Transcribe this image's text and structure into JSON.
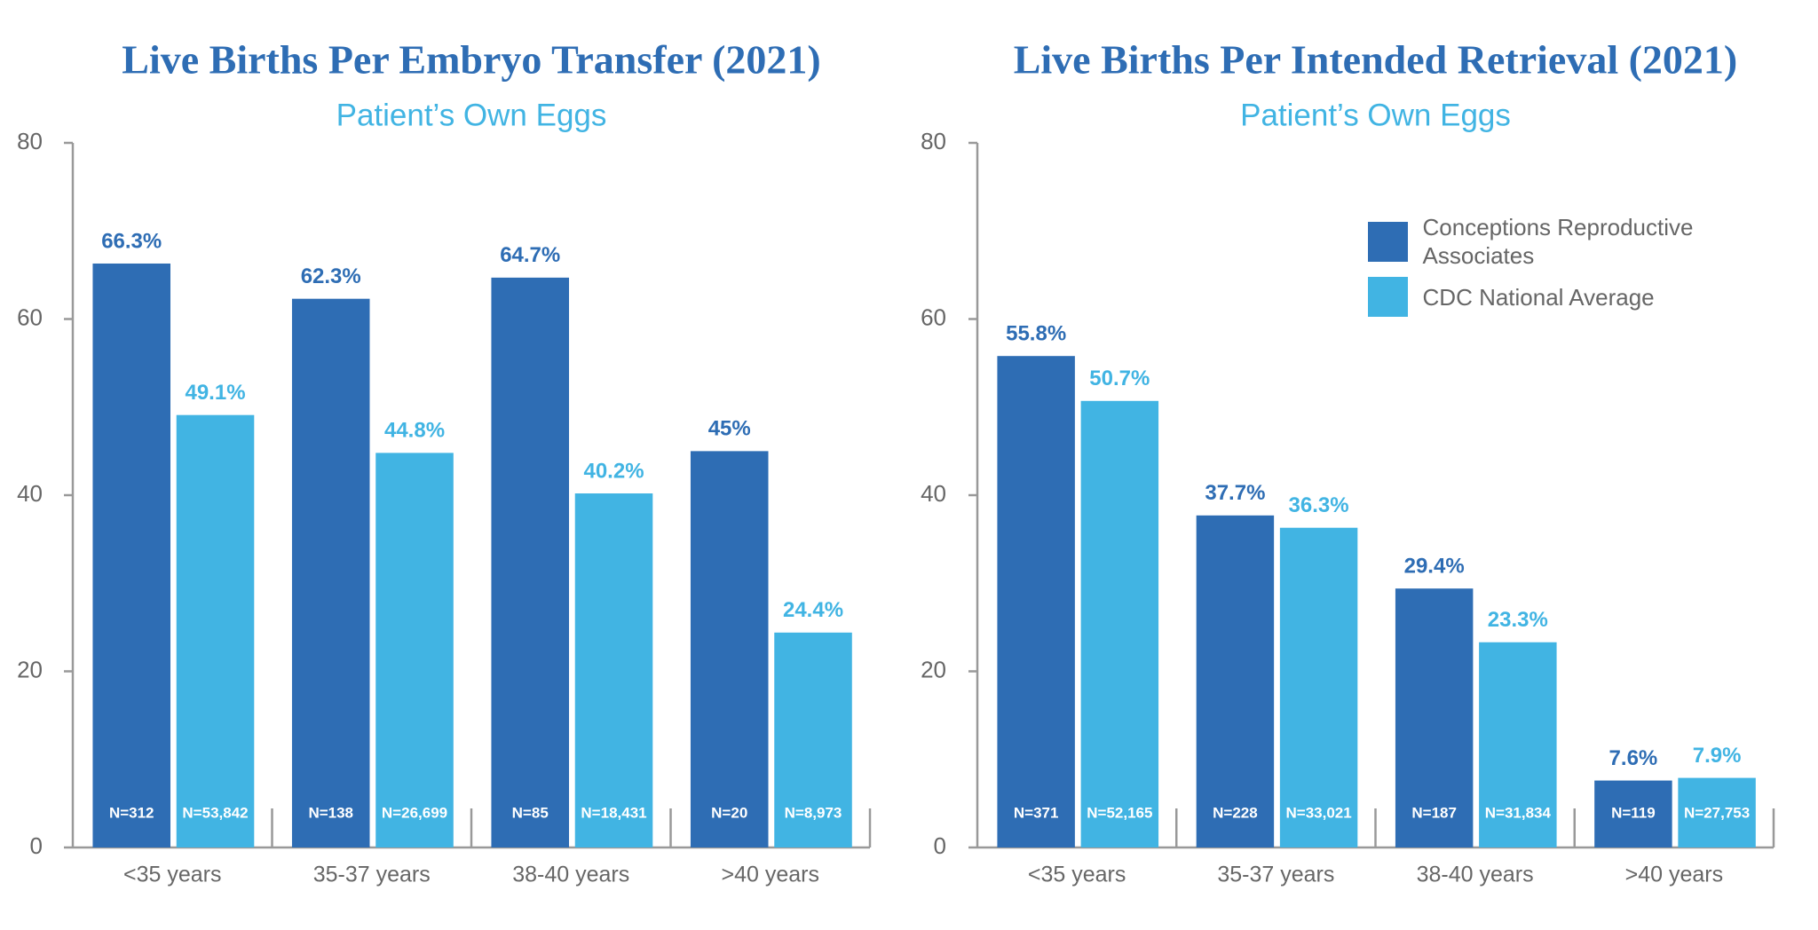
{
  "chart_data": [
    {
      "type": "bar",
      "title": "Live Births Per Embryo Transfer (2021)",
      "subtitle": "Patient’s Own Eggs",
      "categories": [
        "<35 years",
        "35-37 years",
        "38-40 years",
        ">40 years"
      ],
      "ylim": [
        0,
        80
      ],
      "yticks": [
        0,
        20,
        40,
        60,
        80
      ],
      "grid": false,
      "series": [
        {
          "color": "#2e6db4",
          "values": [
            66.3,
            62.3,
            64.7,
            45
          ],
          "value_labels": [
            "66.3%",
            "62.3%",
            "64.7%",
            "45%"
          ],
          "n_labels": [
            "N=312",
            "N=138",
            "N=85",
            "N=20"
          ]
        },
        {
          "color": "#41b4e3",
          "values": [
            49.1,
            44.8,
            40.2,
            24.4
          ],
          "value_labels": [
            "49.1%",
            "44.8%",
            "40.2%",
            "24.4%"
          ],
          "n_labels": [
            "N=53,842",
            "N=26,699",
            "N=18,431",
            "N=8,973"
          ]
        }
      ]
    },
    {
      "type": "bar",
      "title": "Live Births Per Intended Retrieval (2021)",
      "subtitle": "Patient’s Own Eggs",
      "categories": [
        "<35 years",
        "35-37 years",
        "38-40 years",
        ">40 years"
      ],
      "ylim": [
        0,
        80
      ],
      "yticks": [
        0,
        20,
        40,
        60,
        80
      ],
      "grid": false,
      "legend": "upper right",
      "series": [
        {
          "name": "Conceptions Reproductive Associates",
          "color": "#2e6db4",
          "values": [
            55.8,
            37.7,
            29.4,
            7.6
          ],
          "value_labels": [
            "55.8%",
            "37.7%",
            "29.4%",
            "7.6%"
          ],
          "n_labels": [
            "N=371",
            "N=228",
            "N=187",
            "N=119"
          ]
        },
        {
          "name": "CDC National Average",
          "color": "#41b4e3",
          "values": [
            50.7,
            36.3,
            23.3,
            7.9
          ],
          "value_labels": [
            "50.7%",
            "36.3%",
            "23.3%",
            "7.9%"
          ],
          "n_labels": [
            "N=52,165",
            "N=33,021",
            "N=31,834",
            "N=27,753"
          ]
        }
      ]
    }
  ]
}
